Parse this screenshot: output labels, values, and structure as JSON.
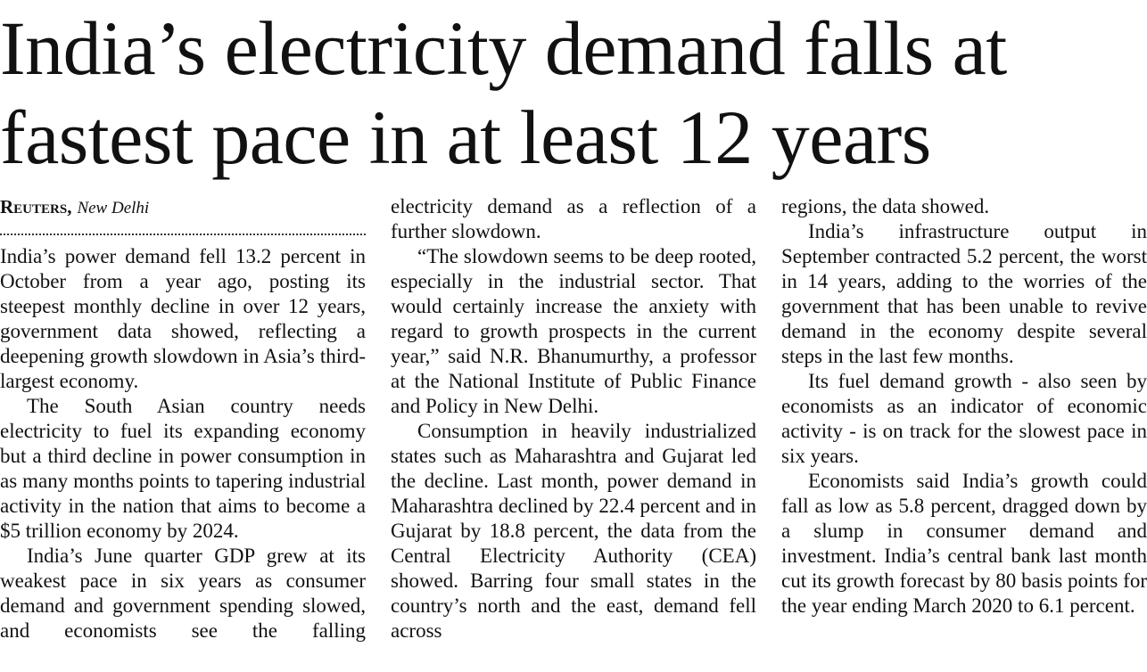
{
  "headline": [
    "India’s electricity demand falls at",
    "fastest pace in at least 12 years"
  ],
  "byline": {
    "agency": "Reuters,",
    "place": "New Delhi"
  },
  "columns": [
    {
      "paragraphs": [
        "India’s power demand fell 13.2 percent in October from a year ago, posting its steepest monthly decline in over 12 years, government data showed, reflecting a deepening growth slowdown in Asia’s third-largest economy.",
        "The South Asian country needs electricity to fuel its expanding economy but a third decline in power consumption in as many months points to tapering industrial activity in the nation that aims to become a $5 trillion economy by 2024.",
        "India’s June quarter GDP grew at its weakest pace in six years as consumer demand and government spending slowed, and economists see the falling"
      ]
    },
    {
      "paragraphs": [
        "electricity demand as a reflection of a further slowdown.",
        "“The slowdown seems to be deep rooted, especially in the industrial sector. That would certainly increase the anxiety with regard to growth prospects in the current year,” said N.R. Bhanumurthy, a professor at the National Institute of Public Finance and Policy in New Delhi.",
        "Consumption in heavily industrialized states such as Maharashtra and Gujarat led the decline. Last month, power demand in Maharashtra declined by 22.4 percent and in Gujarat by 18.8 percent, the data from the Central Electricity Authority (CEA) showed. Barring four small states in the country’s north and the east, demand fell across"
      ]
    },
    {
      "paragraphs": [
        "regions, the data showed.",
        "India’s infrastructure output in September contracted 5.2 percent, the worst in 14 years, adding to the worries of the government that has been unable to revive demand in the economy despite several steps in the last few months.",
        "Its fuel demand growth - also seen by economists as an indicator of economic activity - is on track for the slowest pace in six years.",
        "Economists said India’s growth could fall as low as 5.8 percent, dragged down by a slump in consumer demand and investment. India’s central bank last month cut its growth forecast by 80 basis points for the year ending March 2020 to 6.1 percent."
      ]
    }
  ]
}
